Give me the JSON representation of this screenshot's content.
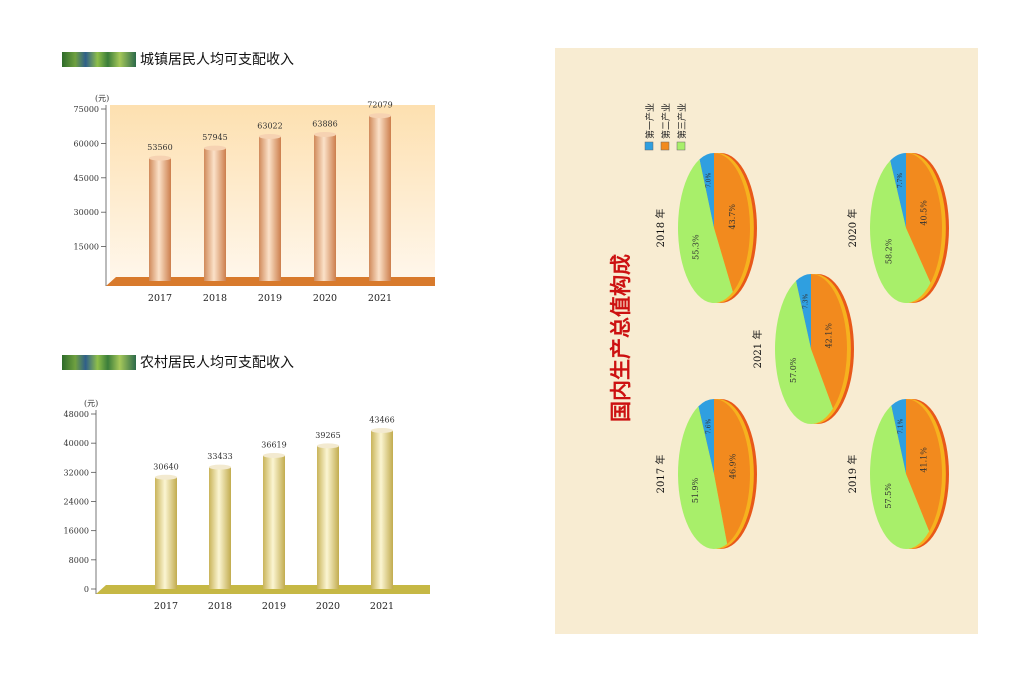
{
  "urban": {
    "title": "城镇居民人均可支配收入",
    "chart_data": {
      "type": "bar",
      "title": "城镇居民人均可支配收入",
      "unit": "(元)",
      "categories": [
        "2017",
        "2018",
        "2019",
        "2020",
        "2021"
      ],
      "values": [
        53560,
        57945,
        63022,
        63886,
        72079
      ],
      "value_labels": [
        "53560",
        "57945",
        "63022",
        "63886",
        "72079"
      ],
      "yticks": [
        15000,
        30000,
        45000,
        60000,
        75000
      ],
      "ylim": [
        0,
        75000
      ],
      "bar_color": "#e9a777",
      "grid": false
    }
  },
  "rural": {
    "title": "农村居民人均可支配收入",
    "chart_data": {
      "type": "bar",
      "title": "农村居民人均可支配收入",
      "unit": "(元)",
      "categories": [
        "2017",
        "2018",
        "2019",
        "2020",
        "2021"
      ],
      "values": [
        30640,
        33433,
        36619,
        39265,
        43466
      ],
      "value_labels": [
        "30640",
        "33433",
        "36619",
        "39265",
        "43466"
      ],
      "yticks": [
        0,
        8000,
        16000,
        24000,
        32000,
        40000,
        48000
      ],
      "ylim": [
        0,
        48000
      ],
      "bar_color": "#e2d28a",
      "grid": false
    }
  },
  "gdp": {
    "title": "国内生产总值构成",
    "legend": [
      "第一产业",
      "第二产业",
      "第三产业"
    ],
    "colors": {
      "primary": "#2f9fe0",
      "secondary": "#f28a1e",
      "tertiary": "#a8ef6a",
      "title": "#cc1111",
      "panel": "#f8ecd2"
    },
    "chart_data": [
      {
        "type": "pie",
        "year_label": "2017 年",
        "values": [
          7.6,
          46.9,
          51.9
        ],
        "labels": [
          "7.6%",
          "46.9%",
          "51.9%"
        ]
      },
      {
        "type": "pie",
        "year_label": "2018 年",
        "values": [
          7.0,
          43.7,
          55.3
        ],
        "labels": [
          "7.0%",
          "43.7%",
          "55.3%"
        ]
      },
      {
        "type": "pie",
        "year_label": "2021 年",
        "values": [
          7.3,
          42.1,
          57.0
        ],
        "labels": [
          "7.3%",
          "42.1%",
          "57.0%"
        ]
      },
      {
        "type": "pie",
        "year_label": "2020 年",
        "values": [
          7.7,
          40.5,
          58.2
        ],
        "labels": [
          "7.7%",
          "40.5%",
          "58.2%"
        ]
      },
      {
        "type": "pie",
        "year_label": "2019 年",
        "values": [
          7.1,
          41.1,
          57.5
        ],
        "labels": [
          "7.1%",
          "41.1%",
          "57.5%"
        ]
      }
    ]
  }
}
